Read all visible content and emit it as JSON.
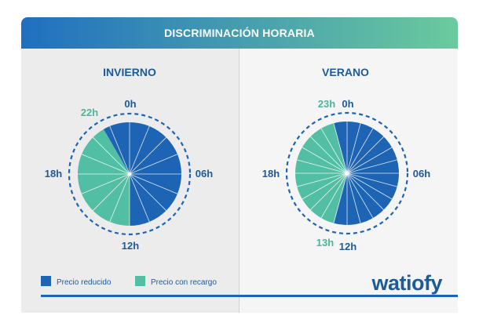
{
  "header": {
    "title": "DISCRIMINACIÓN HORARIA"
  },
  "colors": {
    "reduced": "#1e64b4",
    "surcharge": "#52bfa4",
    "header_start": "#1f6fc0",
    "header_end": "#6bcb9d",
    "label_blue": "#1d5a99",
    "label_teal": "#4db59a"
  },
  "legend": {
    "reduced": "Precio reducido",
    "surcharge": "Precio con recargo"
  },
  "brand": {
    "logo": "watiofy"
  },
  "chart_data": [
    {
      "type": "pie",
      "title": "INVIERNO",
      "ring_labels": [
        "0h",
        "06h",
        "12h",
        "18h"
      ],
      "boundary_labels": [
        "22h"
      ],
      "start_hour": 0,
      "slices": [
        {
          "label": "Precio reducido",
          "from_hour": 0,
          "to_hour": 12,
          "hours": 12
        },
        {
          "label": "Precio con recargo",
          "from_hour": 12,
          "to_hour": 22,
          "hours": 10
        },
        {
          "label": "Precio reducido",
          "from_hour": 22,
          "to_hour": 24,
          "hours": 2
        }
      ]
    },
    {
      "type": "pie",
      "title": "VERANO",
      "ring_labels": [
        "0h",
        "06h",
        "12h",
        "18h"
      ],
      "boundary_labels": [
        "23h",
        "13h"
      ],
      "start_hour": 0,
      "slices": [
        {
          "label": "Precio reducido",
          "from_hour": 0,
          "to_hour": 13,
          "hours": 13
        },
        {
          "label": "Precio con recargo",
          "from_hour": 13,
          "to_hour": 23,
          "hours": 10
        },
        {
          "label": "Precio reducido",
          "from_hour": 23,
          "to_hour": 24,
          "hours": 1
        }
      ]
    }
  ]
}
